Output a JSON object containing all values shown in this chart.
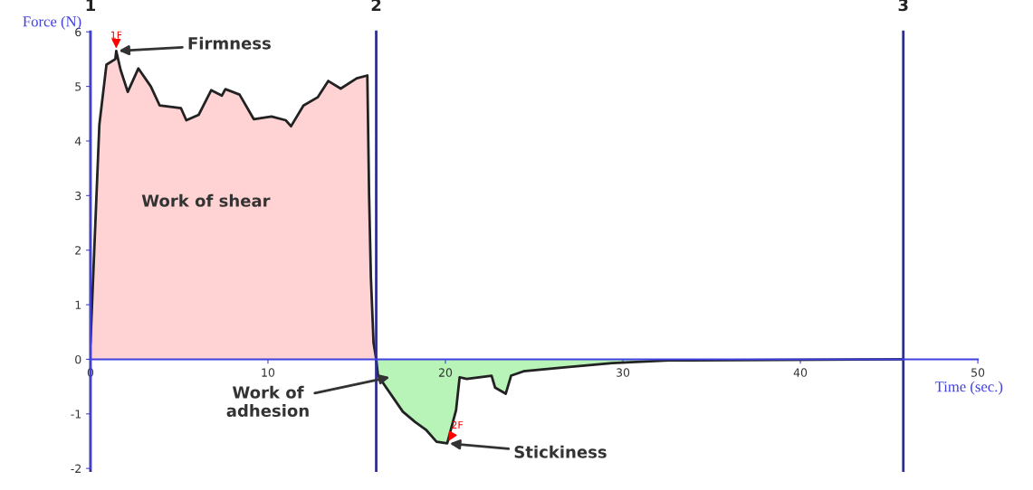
{
  "chart_data": {
    "type": "area",
    "xlabel": "Time (sec.)",
    "ylabel": "Force (N)",
    "series": [
      {
        "color": "#ff8080",
        "x": [
          0,
          0.3,
          0.5,
          0.9,
          1.4,
          1.45,
          1.7,
          2.1,
          2.7,
          3.4,
          3.9,
          5.1,
          5.4,
          6.1,
          6.8,
          7.4,
          7.6,
          8.4,
          9.2,
          10.2,
          11.0,
          11.3,
          12.0,
          12.8,
          13.4,
          14.1,
          15.0,
          15.6,
          15.7,
          15.8,
          15.95,
          16.1
        ],
        "values": [
          0.3,
          2.7,
          4.3,
          5.4,
          5.5,
          5.65,
          5.3,
          4.9,
          5.33,
          5.0,
          4.65,
          4.6,
          4.38,
          4.48,
          4.93,
          4.83,
          4.95,
          4.85,
          4.4,
          4.45,
          4.38,
          4.27,
          4.65,
          4.8,
          5.1,
          4.96,
          5.15,
          5.2,
          3.0,
          1.5,
          0.3,
          0
        ]
      },
      {
        "color": "#33dd33",
        "x": [
          16.1,
          16.2,
          17.6,
          18.3,
          18.9,
          19.5,
          20.1,
          20.6,
          20.8,
          21.2,
          22.6,
          22.8,
          23.4,
          23.7,
          24.4,
          26.7,
          29.4,
          32.6,
          45.8
        ],
        "values": [
          0,
          -0.3,
          -0.96,
          -1.15,
          -1.29,
          -1.51,
          -1.54,
          -0.93,
          -0.33,
          -0.36,
          -0.3,
          -0.52,
          -0.63,
          -0.3,
          -0.22,
          -0.15,
          -0.07,
          -0.02,
          0
        ]
      }
    ],
    "xlim": [
      0,
      50
    ],
    "xticks": [
      0,
      10,
      20,
      30,
      40,
      50
    ],
    "ylim": [
      -2,
      6
    ],
    "yticks": [
      -2,
      -1,
      0,
      1,
      2,
      3,
      4,
      5,
      6
    ],
    "ref_lines": [
      {
        "axis": "x",
        "value": 0,
        "color": "#2e2e8f"
      },
      {
        "axis": "x",
        "value": 16.1,
        "color": "#2e2e8f"
      },
      {
        "axis": "x",
        "value": 45.8,
        "color": "#2e2e8f"
      }
    ],
    "annotations": [
      {
        "text": "Firmness",
        "x": 1.45,
        "y": 5.65
      },
      "Work of shear",
      "Work of\nadhesion",
      {
        "text": "Stickiness",
        "x": 20.1,
        "y": -1.54
      },
      {
        "text": "1F",
        "x": 1.45,
        "y": 5.65
      },
      {
        "text": "2F",
        "x": 20.1,
        "y": -1.54
      },
      {
        "text": "1",
        "x": 0,
        "y": 6
      },
      {
        "text": "2",
        "x": 16.1,
        "y": 6
      },
      {
        "text": "3",
        "x": 45.8,
        "y": 6
      }
    ],
    "grid": false,
    "legend": false
  }
}
